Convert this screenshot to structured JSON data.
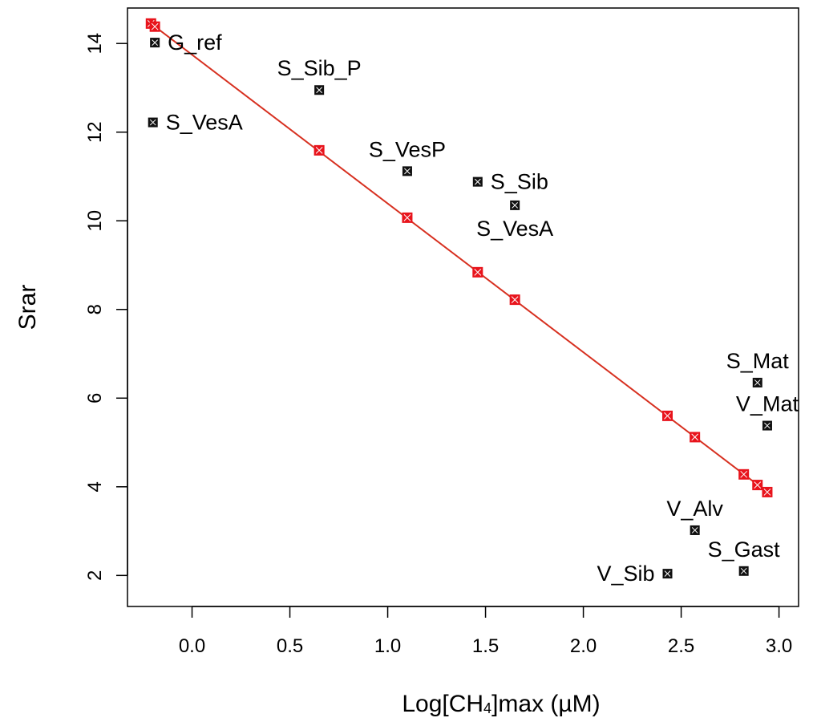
{
  "chart_data": {
    "type": "scatter",
    "title": "",
    "xlabel": {
      "prefix": "Log[CH",
      "subscript": "4",
      "suffix": "]max (µM)"
    },
    "ylabel": "Srar",
    "xlim": [
      -0.33,
      3.1
    ],
    "ylim": [
      1.3,
      14.8
    ],
    "xticks": [
      0.0,
      0.5,
      1.0,
      1.5,
      2.0,
      2.5,
      3.0
    ],
    "xtick_labels": [
      "0.0",
      "0.5",
      "1.0",
      "1.5",
      "2.0",
      "2.5",
      "3.0"
    ],
    "yticks": [
      2,
      4,
      6,
      8,
      10,
      12,
      14
    ],
    "ytick_labels": [
      "2",
      "4",
      "6",
      "8",
      "10",
      "12",
      "14"
    ],
    "grid": false,
    "colors": {
      "observed": "#111111",
      "fitted": "#e8141c",
      "line": "#d73020"
    },
    "series": [
      {
        "points": [
          {
            "x": -0.19,
            "y": 14.02,
            "label": "G_ref",
            "label_pos": "right"
          },
          {
            "x": -0.2,
            "y": 12.22,
            "label": "S_VesA",
            "label_pos": "right"
          },
          {
            "x": 0.65,
            "y": 12.95,
            "label": "S_Sib_P",
            "label_pos": "above"
          },
          {
            "x": 1.1,
            "y": 11.12,
            "label": "S_VesP",
            "label_pos": "above"
          },
          {
            "x": 1.46,
            "y": 10.88,
            "label": "S_Sib",
            "label_pos": "right"
          },
          {
            "x": 1.65,
            "y": 10.35,
            "label": "S_VesA",
            "label_pos": "below"
          },
          {
            "x": 2.89,
            "y": 6.35,
            "label": "S_Mat",
            "label_pos": "above"
          },
          {
            "x": 2.94,
            "y": 5.38,
            "label": "V_Mat",
            "label_pos": "above"
          },
          {
            "x": 2.57,
            "y": 3.02,
            "label": "V_Alv",
            "label_pos": "above"
          },
          {
            "x": 2.82,
            "y": 2.1,
            "label": "S_Gast",
            "label_pos": "above"
          },
          {
            "x": 2.43,
            "y": 2.04,
            "label": "V_Sib",
            "label_pos": "left"
          }
        ]
      },
      {
        "points": [
          {
            "x": -0.21,
            "y": 14.45
          },
          {
            "x": -0.19,
            "y": 14.38
          },
          {
            "x": 0.65,
            "y": 11.59
          },
          {
            "x": 1.1,
            "y": 10.07
          },
          {
            "x": 1.46,
            "y": 8.84
          },
          {
            "x": 1.65,
            "y": 8.22
          },
          {
            "x": 2.43,
            "y": 5.6
          },
          {
            "x": 2.57,
            "y": 5.12
          },
          {
            "x": 2.82,
            "y": 4.28
          },
          {
            "x": 2.89,
            "y": 4.04
          },
          {
            "x": 2.94,
            "y": 3.88
          }
        ]
      }
    ],
    "regression_line": {
      "x": [
        -0.21,
        2.94
      ],
      "y": [
        14.45,
        3.88
      ]
    }
  }
}
